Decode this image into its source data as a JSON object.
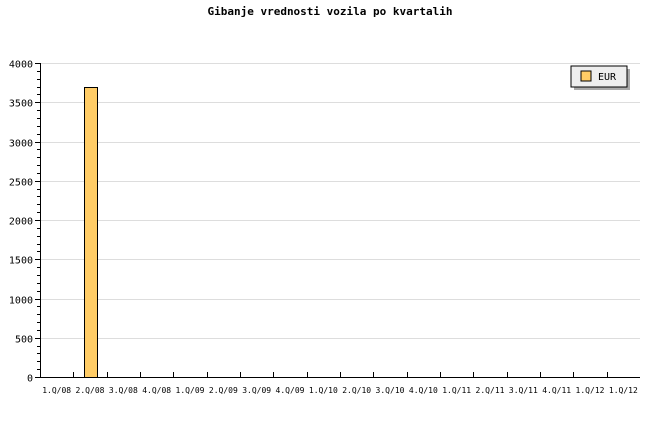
{
  "chart_data": {
    "type": "bar",
    "title": "Gibanje vrednosti vozila po kvartalih",
    "xlabel": "",
    "ylabel": "",
    "categories": [
      "1.Q/08",
      "2.Q/08",
      "3.Q/08",
      "4.Q/08",
      "1.Q/09",
      "2.Q/09",
      "3.Q/09",
      "4.Q/09",
      "1.Q/10",
      "2.Q/10",
      "3.Q/10",
      "4.Q/10",
      "1.Q/11",
      "2.Q/11",
      "3.Q/11",
      "4.Q/11",
      "1.Q/12",
      "1.Q/12"
    ],
    "series": [
      {
        "name": "EUR",
        "values": [
          0,
          3700,
          0,
          0,
          0,
          0,
          0,
          0,
          0,
          0,
          0,
          0,
          0,
          0,
          0,
          0,
          0,
          0
        ],
        "color": "#ffcc66"
      }
    ],
    "ylim": [
      0,
      4000
    ],
    "yticks": [
      0,
      500,
      1000,
      1500,
      2000,
      2500,
      3000,
      3500,
      4000
    ],
    "grid": true,
    "legend": "top-right"
  }
}
